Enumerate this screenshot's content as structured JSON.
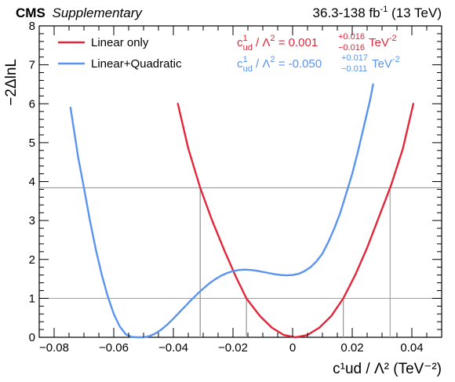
{
  "header": {
    "cms": "CMS",
    "supplementary": "Supplementary",
    "lumi_main": "36.3-138 fb",
    "lumi_exp": "-1",
    "lumi_energy": " (13 TeV)"
  },
  "colors": {
    "linear": "#e3263a",
    "quadratic": "#5a93f0",
    "threshold": "#9a9a9a"
  },
  "chart_data": {
    "type": "line",
    "xlabel": "c¹ud / Λ² (TeV⁻²)",
    "ylabel": "−2ΔlnL",
    "xlim": [
      -0.085,
      0.05
    ],
    "ylim": [
      0,
      8
    ],
    "xticks": [
      -0.08,
      -0.06,
      -0.04,
      -0.02,
      0,
      0.02,
      0.04
    ],
    "xtick_labels": [
      "−0.08",
      "−0.06",
      "−0.04",
      "−0.02",
      "0",
      "0.02",
      "0.04"
    ],
    "yticks": [
      0,
      1,
      2,
      3,
      4,
      5,
      6,
      7,
      8
    ],
    "ytick_labels": [
      "0",
      "1",
      "2",
      "3",
      "4",
      "5",
      "6",
      "7",
      "8"
    ],
    "thresholds": [
      1,
      3.84
    ],
    "legend_position": "top-left",
    "series": [
      {
        "name": "Linear only",
        "x": [
          -0.0385,
          -0.035,
          -0.031,
          -0.027,
          -0.023,
          -0.019,
          -0.0155,
          -0.011,
          -0.007,
          -0.003,
          0.001,
          0.005,
          0.009,
          0.013,
          0.017,
          0.021,
          0.025,
          0.029,
          0.033,
          0.037,
          0.0405
        ],
        "y": [
          6.0,
          4.85,
          3.84,
          3.0,
          2.25,
          1.55,
          1.0,
          0.55,
          0.25,
          0.06,
          0.0,
          0.06,
          0.25,
          0.55,
          1.0,
          1.6,
          2.3,
          3.1,
          3.9,
          4.85,
          6.0
        ],
        "annotation": {
          "prefix": "c",
          "sup": "1",
          "sub": "ud",
          "mid": " / Λ",
          "sq": "2",
          "value": " = 0.001",
          "err_up": "+0.016",
          "err_down": "−0.016",
          "unit": " TeV",
          "unit_exp": "-2"
        }
      },
      {
        "name": "Linear+Quadratic",
        "x": [
          -0.0745,
          -0.072,
          -0.07,
          -0.068,
          -0.066,
          -0.064,
          -0.062,
          -0.06,
          -0.058,
          -0.056,
          -0.054,
          -0.052,
          -0.05,
          -0.048,
          -0.046,
          -0.044,
          -0.042,
          -0.04,
          -0.038,
          -0.036,
          -0.034,
          -0.032,
          -0.03,
          -0.028,
          -0.026,
          -0.024,
          -0.022,
          -0.02,
          -0.018,
          -0.016,
          -0.014,
          -0.012,
          -0.01,
          -0.008,
          -0.006,
          -0.004,
          -0.002,
          0.0,
          0.002,
          0.004,
          0.006,
          0.008,
          0.01,
          0.012,
          0.014,
          0.016,
          0.018,
          0.02,
          0.022,
          0.024,
          0.026,
          0.027
        ],
        "y": [
          5.9,
          4.65,
          3.84,
          3.0,
          2.25,
          1.6,
          1.05,
          0.6,
          0.28,
          0.08,
          0.01,
          0.0,
          0.0,
          0.03,
          0.1,
          0.2,
          0.33,
          0.48,
          0.64,
          0.8,
          0.96,
          1.11,
          1.25,
          1.38,
          1.49,
          1.58,
          1.65,
          1.7,
          1.73,
          1.74,
          1.73,
          1.71,
          1.68,
          1.65,
          1.62,
          1.6,
          1.59,
          1.6,
          1.63,
          1.7,
          1.8,
          1.95,
          2.15,
          2.45,
          2.8,
          3.2,
          3.7,
          4.2,
          4.8,
          5.45,
          6.1,
          6.5
        ],
        "annotation": {
          "prefix": "c",
          "sup": "1",
          "sub": "ud",
          "mid": " / Λ",
          "sq": "2",
          "value": " = -0.050",
          "err_up": "+0.017",
          "err_down": "−0.011",
          "unit": " TeV",
          "unit_exp": "-2"
        }
      }
    ]
  }
}
